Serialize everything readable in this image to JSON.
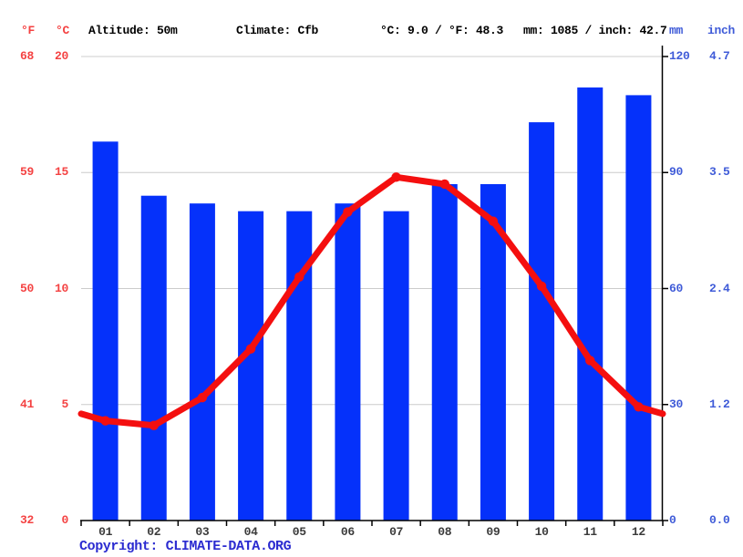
{
  "header": {
    "f_label": "°F",
    "c_label": "°C",
    "altitude": "Altitude: 50m",
    "climate": "Climate: Cfb",
    "temp_summary": "°C: 9.0 / °F: 48.3",
    "precip_summary": "mm: 1085 / inch: 42.7",
    "mm_label": "mm",
    "inch_label": "inch"
  },
  "footer": {
    "copyright_label": "Copyright: ",
    "link_text": "CLIMATE-DATA.ORG"
  },
  "colors": {
    "bar_blue": "#0531fa",
    "line_red": "#f40f0f",
    "red_label": "#f44242",
    "blue_label": "#3f5bd8",
    "link_blue": "#2b2bd0",
    "gridline": "#cccccc",
    "axis": "#000000"
  },
  "chart_data": {
    "type": "bar+line",
    "title": "",
    "categories": [
      "01",
      "02",
      "03",
      "04",
      "05",
      "06",
      "07",
      "08",
      "09",
      "10",
      "11",
      "12"
    ],
    "series": [
      {
        "name": "precipitation",
        "type": "bar",
        "unit": "mm",
        "values": [
          98,
          84,
          82,
          80,
          80,
          82,
          80,
          87,
          87,
          103,
          112,
          110
        ]
      },
      {
        "name": "temperature",
        "type": "line",
        "unit": "°C",
        "values": [
          4.3,
          4.1,
          5.3,
          7.4,
          10.5,
          13.3,
          14.8,
          14.5,
          12.9,
          10.1,
          6.9,
          4.9
        ]
      }
    ],
    "axes": {
      "left_f_ticks": [
        "68",
        "59",
        "50",
        "41",
        "32"
      ],
      "left_c_ticks": [
        "20",
        "15",
        "10",
        "5",
        "0"
      ],
      "right_mm_ticks": [
        "120",
        "90",
        "60",
        "30",
        "0"
      ],
      "right_inch_ticks": [
        "4.7",
        "3.5",
        "2.4",
        "1.2",
        "0.0"
      ],
      "c_range": [
        0,
        20
      ],
      "mm_range": [
        0,
        120
      ]
    },
    "grid": true,
    "legend": "none",
    "annual_mean_c": 9.0,
    "annual_mean_f": 48.3,
    "annual_precip_mm": 1085,
    "annual_precip_inch": 42.7
  }
}
